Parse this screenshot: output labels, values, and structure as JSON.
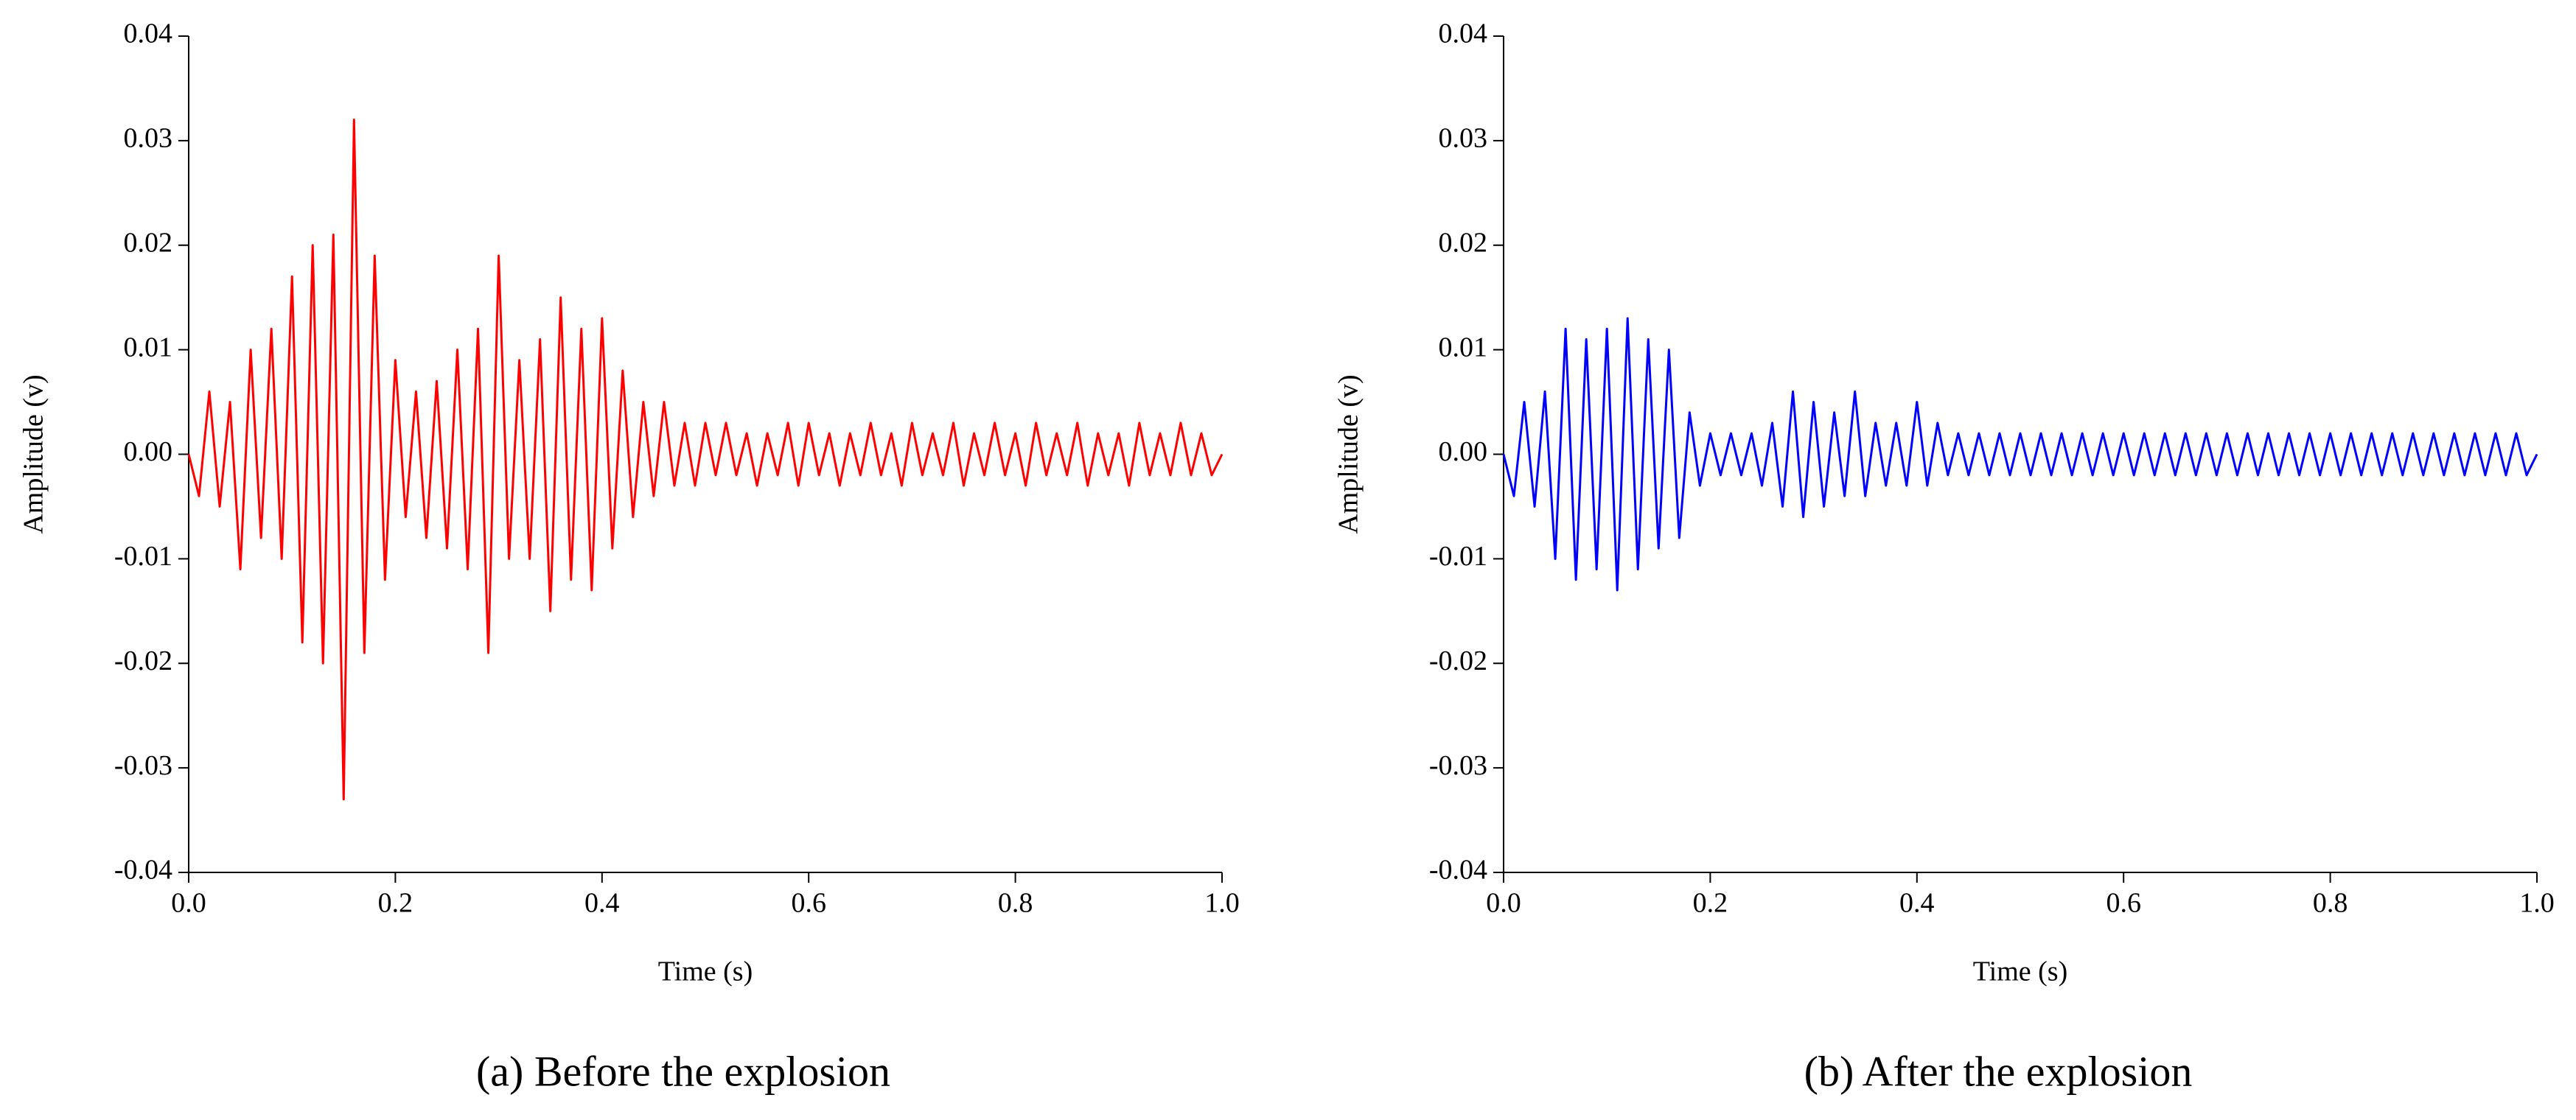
{
  "chart_data": [
    {
      "type": "line",
      "caption": "(a) Before the explosion",
      "xlabel": "Time (s)",
      "ylabel": "Amplitude (v)",
      "xlim": [
        0,
        1
      ],
      "ylim": [
        -0.04,
        0.04
      ],
      "xticks": [
        {
          "value": 0,
          "label": "0.0"
        },
        0.2,
        0.4,
        0.6,
        0.8,
        {
          "value": 1,
          "label": "1.0"
        }
      ],
      "yticks": [
        -0.04,
        -0.03,
        -0.02,
        -0.01,
        {
          "value": 0,
          "label": "0.00"
        },
        0.01,
        0.02,
        0.03,
        0.04
      ],
      "x": [
        0,
        0.01,
        0.02,
        0.03,
        0.04,
        0.05,
        0.06,
        0.07,
        0.08,
        0.09,
        0.1,
        0.11,
        0.12,
        0.13,
        0.14,
        0.15,
        0.16,
        0.17,
        0.18,
        0.19,
        0.2,
        0.21,
        0.22,
        0.23,
        0.24,
        0.25,
        0.26,
        0.27,
        0.28,
        0.29,
        0.3,
        0.31,
        0.32,
        0.33,
        0.34,
        0.35,
        0.36,
        0.37,
        0.38,
        0.39,
        0.4,
        0.41,
        0.42,
        0.43,
        0.44,
        0.45,
        0.46,
        0.47,
        0.48,
        0.49,
        0.5,
        0.51,
        0.52,
        0.53,
        0.54,
        0.55,
        0.56,
        0.57,
        0.58,
        0.59,
        0.6,
        0.61,
        0.62,
        0.63,
        0.64,
        0.65,
        0.66,
        0.67,
        0.68,
        0.69,
        0.7,
        0.71,
        0.72,
        0.73,
        0.74,
        0.75,
        0.76,
        0.77,
        0.78,
        0.79,
        0.8,
        0.81,
        0.82,
        0.83,
        0.84,
        0.85,
        0.86,
        0.87,
        0.88,
        0.89,
        0.9,
        0.91,
        0.92,
        0.93,
        0.94,
        0.95,
        0.96,
        0.97,
        0.98,
        0.99,
        1
      ],
      "series": [
        {
          "color": "#ff0000",
          "values": [
            0,
            -0.004,
            0.006,
            -0.005,
            0.005,
            -0.011,
            0.01,
            -0.008,
            0.012,
            -0.01,
            0.017,
            -0.018,
            0.02,
            -0.02,
            0.021,
            -0.033,
            0.032,
            -0.019,
            0.019,
            -0.012,
            0.009,
            -0.006,
            0.006,
            -0.008,
            0.007,
            -0.009,
            0.01,
            -0.011,
            0.012,
            -0.019,
            0.019,
            -0.01,
            0.009,
            -0.01,
            0.011,
            -0.015,
            0.015,
            -0.012,
            0.012,
            -0.013,
            0.013,
            -0.009,
            0.008,
            -0.006,
            0.005,
            -0.004,
            0.005,
            -0.003,
            0.003,
            -0.003,
            0.003,
            -0.002,
            0.003,
            -0.002,
            0.002,
            -0.003,
            0.002,
            -0.002,
            0.003,
            -0.003,
            0.003,
            -0.002,
            0.002,
            -0.003,
            0.002,
            -0.002,
            0.003,
            -0.002,
            0.002,
            -0.003,
            0.003,
            -0.002,
            0.002,
            -0.002,
            0.003,
            -0.003,
            0.002,
            -0.002,
            0.003,
            -0.002,
            0.002,
            -0.003,
            0.003,
            -0.002,
            0.002,
            -0.002,
            0.003,
            -0.003,
            0.002,
            -0.002,
            0.002,
            -0.003,
            0.003,
            -0.002,
            0.002,
            -0.002,
            0.003,
            -0.002,
            0.002,
            -0.002,
            0
          ]
        }
      ]
    },
    {
      "type": "line",
      "caption": "(b) After the explosion",
      "xlabel": "Time (s)",
      "ylabel": "Amplitude (v)",
      "xlim": [
        0,
        1
      ],
      "ylim": [
        -0.04,
        0.04
      ],
      "xticks": [
        {
          "value": 0,
          "label": "0.0"
        },
        0.2,
        0.4,
        0.6,
        0.8,
        {
          "value": 1,
          "label": "1.0"
        }
      ],
      "yticks": [
        -0.04,
        -0.03,
        -0.02,
        -0.01,
        {
          "value": 0,
          "label": "0.00"
        },
        0.01,
        0.02,
        0.03,
        0.04
      ],
      "x": [
        0,
        0.01,
        0.02,
        0.03,
        0.04,
        0.05,
        0.06,
        0.07,
        0.08,
        0.09,
        0.1,
        0.11,
        0.12,
        0.13,
        0.14,
        0.15,
        0.16,
        0.17,
        0.18,
        0.19,
        0.2,
        0.21,
        0.22,
        0.23,
        0.24,
        0.25,
        0.26,
        0.27,
        0.28,
        0.29,
        0.3,
        0.31,
        0.32,
        0.33,
        0.34,
        0.35,
        0.36,
        0.37,
        0.38,
        0.39,
        0.4,
        0.41,
        0.42,
        0.43,
        0.44,
        0.45,
        0.46,
        0.47,
        0.48,
        0.49,
        0.5,
        0.51,
        0.52,
        0.53,
        0.54,
        0.55,
        0.56,
        0.57,
        0.58,
        0.59,
        0.6,
        0.61,
        0.62,
        0.63,
        0.64,
        0.65,
        0.66,
        0.67,
        0.68,
        0.69,
        0.7,
        0.71,
        0.72,
        0.73,
        0.74,
        0.75,
        0.76,
        0.77,
        0.78,
        0.79,
        0.8,
        0.81,
        0.82,
        0.83,
        0.84,
        0.85,
        0.86,
        0.87,
        0.88,
        0.89,
        0.9,
        0.91,
        0.92,
        0.93,
        0.94,
        0.95,
        0.96,
        0.97,
        0.98,
        0.99,
        1
      ],
      "series": [
        {
          "color": "#0000ff",
          "values": [
            0,
            -0.004,
            0.005,
            -0.005,
            0.006,
            -0.01,
            0.012,
            -0.012,
            0.011,
            -0.011,
            0.012,
            -0.013,
            0.013,
            -0.011,
            0.011,
            -0.009,
            0.01,
            -0.008,
            0.004,
            -0.003,
            0.002,
            -0.002,
            0.002,
            -0.002,
            0.002,
            -0.003,
            0.003,
            -0.005,
            0.006,
            -0.006,
            0.005,
            -0.005,
            0.004,
            -0.004,
            0.006,
            -0.004,
            0.003,
            -0.003,
            0.003,
            -0.003,
            0.005,
            -0.003,
            0.003,
            -0.002,
            0.002,
            -0.002,
            0.002,
            -0.002,
            0.002,
            -0.002,
            0.002,
            -0.002,
            0.002,
            -0.002,
            0.002,
            -0.002,
            0.002,
            -0.002,
            0.002,
            -0.002,
            0.002,
            -0.002,
            0.002,
            -0.002,
            0.002,
            -0.002,
            0.002,
            -0.002,
            0.002,
            -0.002,
            0.002,
            -0.002,
            0.002,
            -0.002,
            0.002,
            -0.002,
            0.002,
            -0.002,
            0.002,
            -0.002,
            0.002,
            -0.002,
            0.002,
            -0.002,
            0.002,
            -0.002,
            0.002,
            -0.002,
            0.002,
            -0.002,
            0.002,
            -0.002,
            0.002,
            -0.002,
            0.002,
            -0.002,
            0.002,
            -0.002,
            0.002,
            -0.002,
            0
          ]
        }
      ]
    }
  ]
}
